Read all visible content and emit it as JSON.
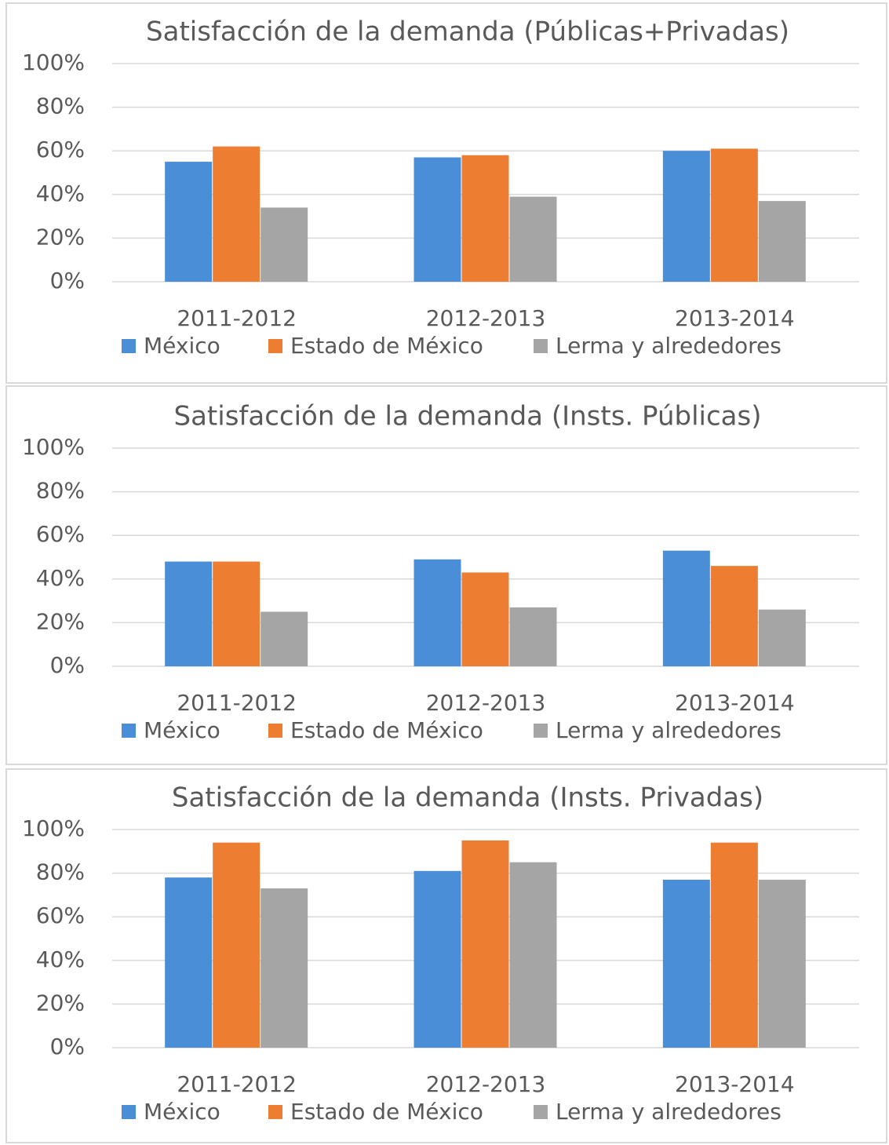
{
  "chart_data": [
    {
      "type": "bar",
      "title": "Satisfacción de la demanda (Públicas+Privadas)",
      "categories": [
        "2011-2012",
        "2012-2013",
        "2013-2014"
      ],
      "series": [
        {
          "name": "México",
          "color": "#4a8ed8",
          "values": [
            55,
            57,
            60
          ]
        },
        {
          "name": "Estado de México",
          "color": "#ed7d31",
          "values": [
            62,
            58,
            61
          ]
        },
        {
          "name": "Lerma y alrededores",
          "color": "#a5a5a5",
          "values": [
            34,
            39,
            37
          ]
        }
      ],
      "ylim": [
        0,
        100
      ],
      "yticks": [
        {
          "value": 0,
          "label": "0%"
        },
        {
          "value": 20,
          "label": "20%"
        },
        {
          "value": 40,
          "label": "40%"
        },
        {
          "value": 60,
          "label": "60%"
        },
        {
          "value": 80,
          "label": "80%"
        },
        {
          "value": 100,
          "label": "100%"
        }
      ],
      "grid": true,
      "legend": "bottom"
    },
    {
      "type": "bar",
      "title": "Satisfacción de la demanda (Insts. Públicas)",
      "categories": [
        "2011-2012",
        "2012-2013",
        "2013-2014"
      ],
      "series": [
        {
          "name": "México",
          "color": "#4a8ed8",
          "values": [
            48,
            49,
            53
          ]
        },
        {
          "name": "Estado de México",
          "color": "#ed7d31",
          "values": [
            48,
            43,
            46
          ]
        },
        {
          "name": "Lerma y alrededores",
          "color": "#a5a5a5",
          "values": [
            25,
            27,
            26
          ]
        }
      ],
      "ylim": [
        0,
        100
      ],
      "yticks": [
        {
          "value": 0,
          "label": "0%"
        },
        {
          "value": 20,
          "label": "20%"
        },
        {
          "value": 40,
          "label": "40%"
        },
        {
          "value": 60,
          "label": "60%"
        },
        {
          "value": 80,
          "label": "80%"
        },
        {
          "value": 100,
          "label": "100%"
        }
      ],
      "grid": true,
      "legend": "bottom"
    },
    {
      "type": "bar",
      "title": "Satisfacción de la demanda (Insts. Privadas)",
      "categories": [
        "2011-2012",
        "2012-2013",
        "2013-2014"
      ],
      "series": [
        {
          "name": "México",
          "color": "#4a8ed8",
          "values": [
            78,
            81,
            77
          ]
        },
        {
          "name": "Estado de México",
          "color": "#ed7d31",
          "values": [
            94,
            95,
            94
          ]
        },
        {
          "name": "Lerma y alrededores",
          "color": "#a5a5a5",
          "values": [
            73,
            85,
            77
          ]
        }
      ],
      "ylim": [
        0,
        100
      ],
      "yticks": [
        {
          "value": 0,
          "label": "0%"
        },
        {
          "value": 20,
          "label": "20%"
        },
        {
          "value": 40,
          "label": "40%"
        },
        {
          "value": 60,
          "label": "60%"
        },
        {
          "value": 80,
          "label": "80%"
        },
        {
          "value": 100,
          "label": "100%"
        }
      ],
      "grid": true,
      "legend": "bottom"
    }
  ]
}
